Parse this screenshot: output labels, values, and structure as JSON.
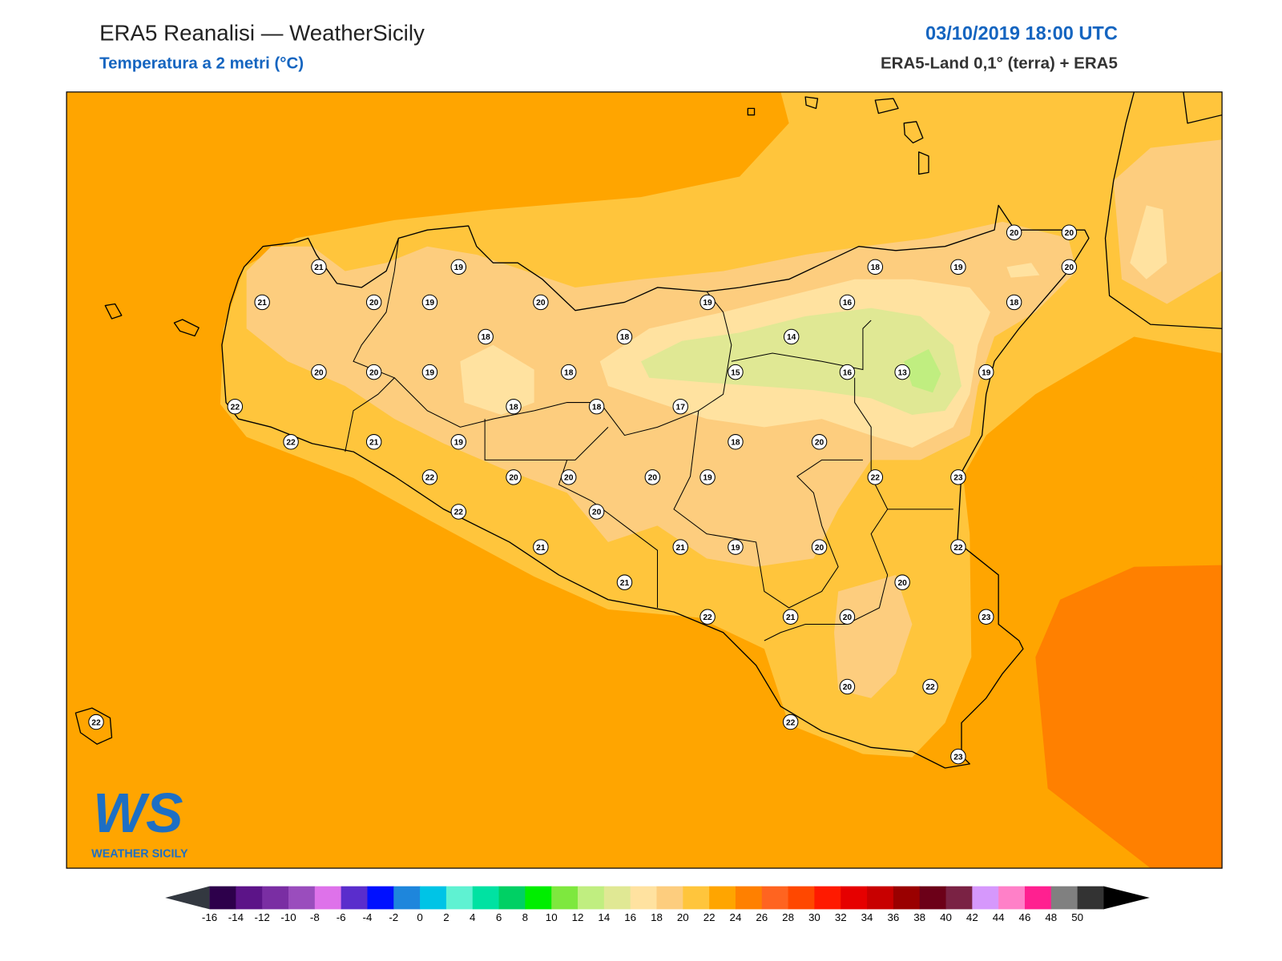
{
  "header": {
    "title": "ERA5 Reanalisi — WeatherSicily",
    "subtitle": "Temperatura a 2 metri (°C)",
    "datetime": "03/10/2019 18:00 UTC",
    "source": "ERA5-Land 0,1° (terra) + ERA5"
  },
  "logo": {
    "mark": "WS",
    "name": "WEATHER SICILY"
  },
  "stations": [
    21,
    19,
    21,
    20,
    19,
    20,
    19,
    18,
    18,
    20,
    20,
    19,
    18,
    18,
    18,
    17,
    22,
    22,
    21,
    19,
    18,
    20,
    22,
    20,
    20,
    20,
    19,
    22,
    23,
    22,
    20,
    21,
    21,
    19,
    20,
    22,
    21,
    20,
    22,
    21,
    20,
    23,
    20,
    22,
    22,
    23,
    22,
    18,
    19,
    20,
    20,
    20,
    16,
    18,
    14,
    15,
    16,
    13,
    19
  ],
  "colorbar": {
    "ticks": [
      -16,
      -14,
      -12,
      -10,
      -8,
      -6,
      -4,
      -2,
      0,
      2,
      4,
      6,
      8,
      10,
      12,
      14,
      16,
      18,
      20,
      22,
      24,
      26,
      28,
      30,
      32,
      34,
      36,
      38,
      40,
      42,
      44,
      46,
      48,
      50
    ],
    "colors": [
      "#2d004b",
      "#5c1488",
      "#7a2ea3",
      "#9a4dbd",
      "#de72ea",
      "#5a2dcc",
      "#0010ff",
      "#1e86dc",
      "#00c4e6",
      "#5ff2d2",
      "#00e2a2",
      "#00d064",
      "#00ee00",
      "#7ee83e",
      "#c0ee80",
      "#e0e894",
      "#ffe2a0",
      "#fdcd7e",
      "#ffc53c",
      "#ffa500",
      "#ff8000",
      "#ff6420",
      "#ff4800",
      "#ff1a00",
      "#e60000",
      "#c80000",
      "#9a0000",
      "#6c0018",
      "#7a2244",
      "#d698fc",
      "#ff80c8",
      "#ff2090",
      "#808080",
      "#333333"
    ],
    "under_color": "#333840",
    "over_color": "#000000"
  }
}
